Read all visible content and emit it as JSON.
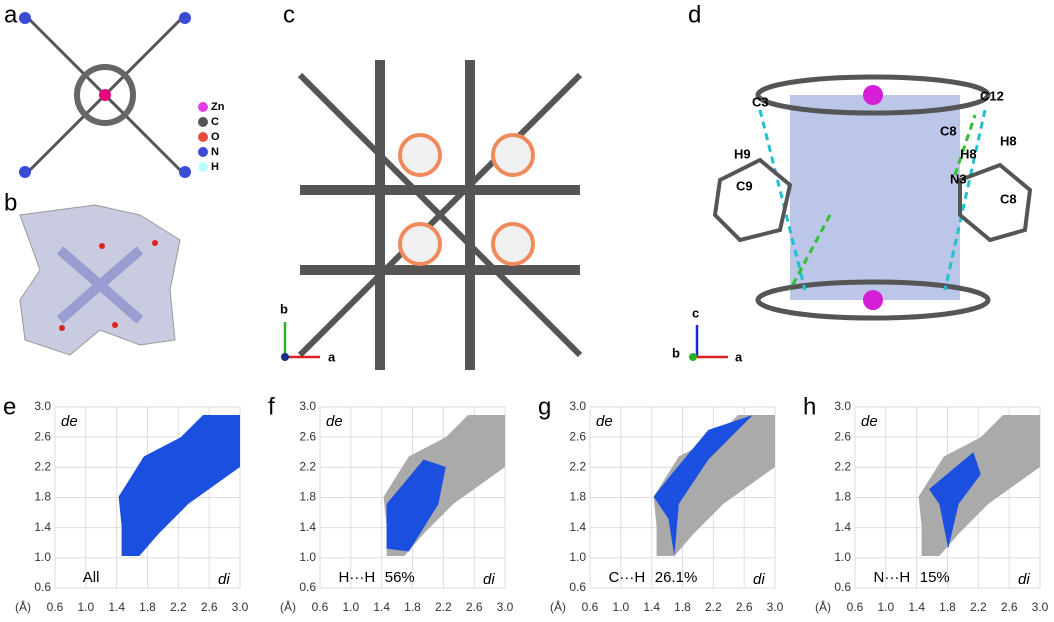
{
  "panel_a": {
    "letter": "a",
    "legend": [
      "Zn",
      "C",
      "O",
      "N",
      "H"
    ]
  },
  "panel_b": {
    "letter": "b"
  },
  "panel_c": {
    "letter": "c",
    "axes": [
      "b",
      "a"
    ]
  },
  "panel_d": {
    "letter": "d",
    "atoms": [
      "C3",
      "H9",
      "C9",
      "C12",
      "C8",
      "H8",
      "H8",
      "N3",
      "C8"
    ],
    "axes": [
      "c",
      "b",
      "a"
    ]
  },
  "axis_ticks": [
    "0.6",
    "1.0",
    "1.4",
    "1.8",
    "2.2",
    "2.6",
    "3.0"
  ],
  "plots": [
    {
      "letter": "e",
      "y_label": "de",
      "x_label": "di",
      "unit": "(Å)",
      "annotations": [
        "All"
      ]
    },
    {
      "letter": "f",
      "y_label": "de",
      "x_label": "di",
      "unit": "(Å)",
      "annotations": [
        "H···H",
        "56%"
      ]
    },
    {
      "letter": "g",
      "y_label": "de",
      "x_label": "di",
      "unit": "(Å)",
      "annotations": [
        "C···H",
        "26.1%"
      ]
    },
    {
      "letter": "h",
      "y_label": "de",
      "x_label": "di",
      "unit": "(Å)",
      "annotations": [
        "N···H",
        "15%"
      ]
    }
  ]
}
